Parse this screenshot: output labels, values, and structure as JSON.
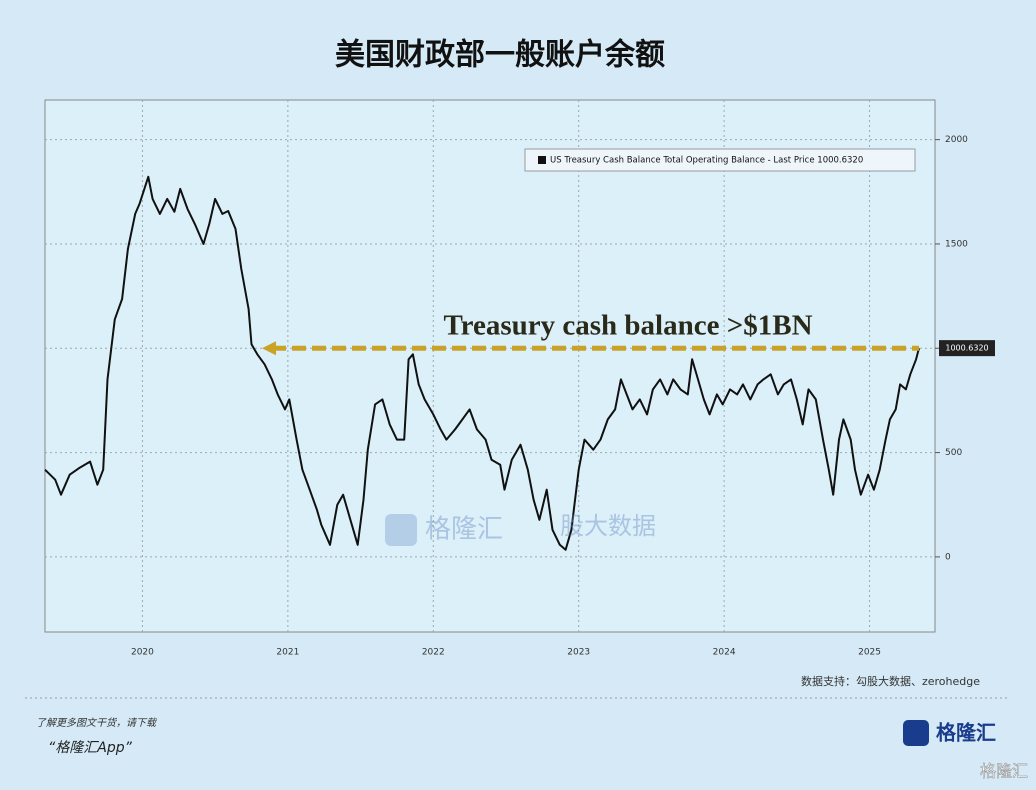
{
  "chart_data": {
    "type": "line",
    "title": "美国财政部一般账户余额",
    "annotation": "Treasury cash balance >$1BN",
    "reference_value": 1000,
    "last_price": {
      "value": 1000.632,
      "label": "1000.6320"
    },
    "source": "数据支持：勾股大数据、zerohedge",
    "x": [
      2019.83,
      2019.9,
      2019.94,
      2020.0,
      2020.07,
      2020.14,
      2020.19,
      2020.23,
      2020.26,
      2020.31,
      2020.36,
      2020.4,
      2020.45,
      2020.48,
      2020.54,
      2020.57,
      2020.62,
      2020.67,
      2020.72,
      2020.76,
      2020.81,
      2020.86,
      2020.92,
      2020.96,
      2021.0,
      2021.05,
      2021.09,
      2021.14,
      2021.18,
      2021.23,
      2021.25,
      2021.29,
      2021.34,
      2021.39,
      2021.43,
      2021.48,
      2021.51,
      2021.56,
      2021.6,
      2021.65,
      2021.7,
      2021.73,
      2021.79,
      2021.84,
      2021.88,
      2021.93,
      2021.98,
      2022.02,
      2022.05,
      2022.1,
      2022.15,
      2022.2,
      2022.25,
      2022.3,
      2022.33,
      2022.36,
      2022.4,
      2022.44,
      2022.5,
      2022.55,
      2022.59,
      2022.65,
      2022.7,
      2022.75,
      2022.8,
      2022.86,
      2022.9,
      2022.96,
      2022.99,
      2023.04,
      2023.1,
      2023.15,
      2023.19,
      2023.23,
      2023.28,
      2023.32,
      2023.37,
      2023.41,
      2023.45,
      2023.5,
      2023.54,
      2023.6,
      2023.65,
      2023.7,
      2023.75,
      2023.79,
      2023.83,
      2023.87,
      2023.92,
      2023.97,
      2024.01,
      2024.06,
      2024.11,
      2024.15,
      2024.2,
      2024.25,
      2024.28,
      2024.32,
      2024.36,
      2024.4,
      2024.45,
      2024.49,
      2024.54,
      2024.59,
      2024.63,
      2024.68,
      2024.73,
      2024.77,
      2024.82,
      2024.87,
      2024.91,
      2024.96,
      2025.0,
      2025.04,
      2025.08,
      2025.13,
      2025.18,
      2025.22,
      2025.25,
      2025.29,
      2025.32,
      2025.37,
      2025.4,
      2025.44,
      2025.49,
      2025.53,
      2025.57,
      2025.61,
      2025.64,
      2025.68,
      2025.71,
      2025.75,
      2025.78,
      2025.82,
      2025.84
    ],
    "series": [
      {
        "name": "US Treasury Cash Balance Total Operating Balance - Last Price 1000.6320",
        "color": "#111111",
        "values": [
          418,
          370,
          298,
          394,
          428,
          457,
          346,
          418,
          851,
          1139,
          1236,
          1476,
          1644,
          1692,
          1822,
          1716,
          1644,
          1716,
          1654,
          1764,
          1668,
          1596,
          1500,
          1596,
          1716,
          1644,
          1658,
          1572,
          1380,
          1188,
          1019,
          971,
          923,
          851,
          779,
          707,
          755,
          562,
          418,
          322,
          226,
          154,
          58,
          250,
          298,
          178,
          58,
          274,
          514,
          731,
          755,
          635,
          562,
          562,
          947,
          971,
          827,
          755,
          683,
          611,
          562,
          611,
          659,
          707,
          611,
          562,
          466,
          442,
          322,
          466,
          538,
          418,
          274,
          178,
          322,
          130,
          58,
          34,
          130,
          418,
          562,
          514,
          562,
          659,
          707,
          851,
          779,
          707,
          755,
          683,
          803,
          851,
          779,
          851,
          803,
          779,
          947,
          851,
          755,
          683,
          779,
          731,
          803,
          779,
          827,
          755,
          827,
          851,
          875,
          779,
          827,
          851,
          755,
          635,
          803,
          755,
          562,
          418,
          298,
          562,
          659,
          562,
          418,
          298,
          394,
          322,
          418,
          562,
          659,
          707,
          827,
          803,
          875,
          947,
          1000.632
        ]
      }
    ],
    "xlim": [
      2019.83,
      2025.95
    ],
    "ylim": [
      -360,
      2190
    ],
    "xticks": [
      {
        "value": 2020.5,
        "label": "2020"
      },
      {
        "value": 2021.5,
        "label": "2021"
      },
      {
        "value": 2022.5,
        "label": "2022"
      },
      {
        "value": 2023.5,
        "label": "2023"
      },
      {
        "value": 2024.5,
        "label": "2024"
      },
      {
        "value": 2025.5,
        "label": "2025"
      }
    ],
    "yticks": [
      0,
      500,
      1000,
      1500,
      2000
    ],
    "grid": true,
    "watermarks": [
      "格隆汇",
      "股大数据"
    ]
  },
  "footer": {
    "promo": "了解更多图文干货，请下载",
    "app": "“格隆汇App”",
    "logo": "格隆汇",
    "corner": "格隆汇"
  }
}
